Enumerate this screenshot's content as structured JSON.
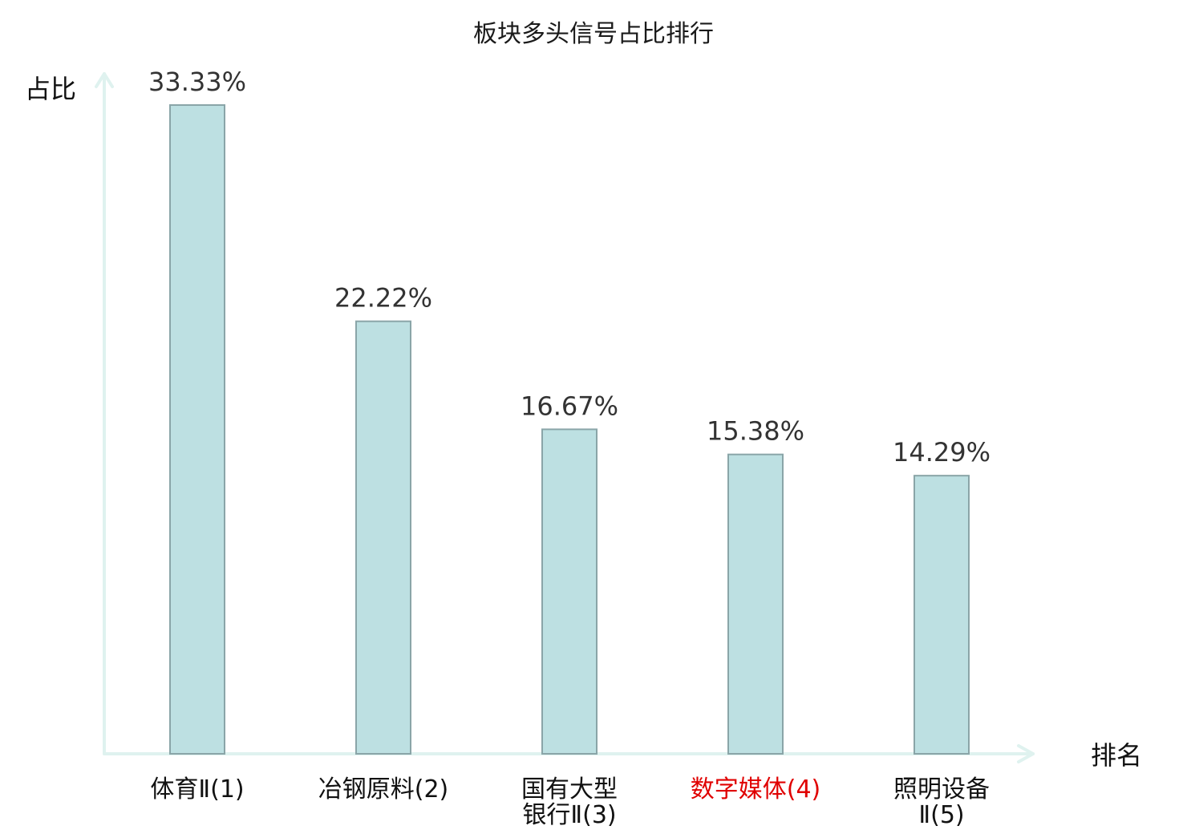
{
  "chart_data": {
    "type": "bar",
    "title": "板块多头信号占比排行",
    "xlabel": "排名",
    "ylabel": "占比",
    "categories": [
      {
        "lines": [
          "体育Ⅱ(1)"
        ],
        "highlight": false
      },
      {
        "lines": [
          "冶钢原料(2)"
        ],
        "highlight": false
      },
      {
        "lines": [
          "国有大型",
          "银行Ⅱ(3)"
        ],
        "highlight": false
      },
      {
        "lines": [
          "数字媒体(4)"
        ],
        "highlight": true
      },
      {
        "lines": [
          "照明设备",
          "Ⅱ(5)"
        ],
        "highlight": false
      }
    ],
    "values": [
      33.33,
      22.22,
      16.67,
      15.38,
      14.29
    ],
    "value_labels": [
      "33.33%",
      "22.22%",
      "16.67%",
      "15.38%",
      "14.29%"
    ],
    "ylim": [
      0,
      33.33
    ],
    "grid": false,
    "legend": "none"
  },
  "colors": {
    "bar_fill": "#bde0e2",
    "bar_stroke": "#8aa5a8",
    "axis": "#dff2ef",
    "category_text": "#111111",
    "highlight_text": "#e00000"
  }
}
